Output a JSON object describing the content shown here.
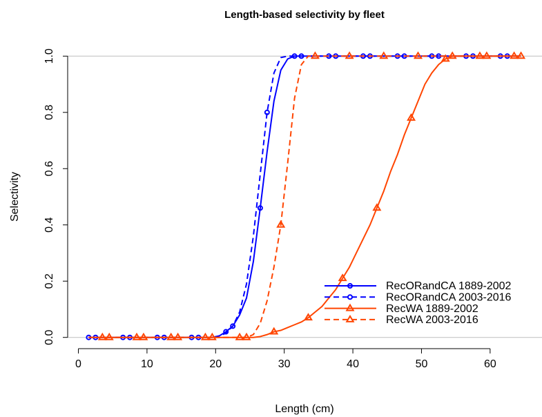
{
  "chart_data": {
    "type": "line",
    "title": "Length-based selectivity by fleet",
    "x_label": "Length (cm)",
    "y_label": "Selectivity",
    "x": [
      1.5,
      2.5,
      3.5,
      4.5,
      5.5,
      6.5,
      7.5,
      8.5,
      9.5,
      10.5,
      11.5,
      12.5,
      13.5,
      14.5,
      15.5,
      16.5,
      17.5,
      18.5,
      19.5,
      20.5,
      21.5,
      22.5,
      23.5,
      24.5,
      25.5,
      26.5,
      27.5,
      28.5,
      29.5,
      30.5,
      31.5,
      32.5,
      33.5,
      34.5,
      35.5,
      36.5,
      37.5,
      38.5,
      39.5,
      40.5,
      41.5,
      42.5,
      43.5,
      44.5,
      45.5,
      46.5,
      47.5,
      48.5,
      49.5,
      50.5,
      51.5,
      52.5,
      53.5,
      54.5,
      55.5,
      56.5,
      57.5,
      58.5,
      59.5,
      60.5,
      61.5,
      62.5,
      63.5,
      64.5
    ],
    "series": [
      {
        "name": "RecORandCA 1889-2002",
        "color": "#0000ff",
        "dashed": false,
        "marker": "circle",
        "marker_every": 5,
        "marker_start": 0,
        "values": [
          0,
          0,
          0,
          0,
          0,
          0,
          0,
          0,
          0,
          0,
          0,
          0,
          0,
          0,
          0,
          0,
          0,
          0,
          0,
          0.005,
          0.02,
          0.04,
          0.08,
          0.14,
          0.27,
          0.46,
          0.66,
          0.84,
          0.95,
          0.99,
          1,
          1,
          1,
          1,
          1,
          1,
          1,
          1,
          1,
          1,
          1,
          1,
          1,
          1,
          1,
          1,
          1,
          1,
          1,
          1,
          1,
          1,
          1,
          1,
          1,
          1,
          1,
          1,
          1,
          1,
          1,
          1,
          1,
          1
        ]
      },
      {
        "name": "RecORandCA 2003-2016",
        "color": "#0000ff",
        "dashed": true,
        "marker": "circle",
        "marker_every": 5,
        "marker_start": 1,
        "values": [
          0,
          0,
          0,
          0,
          0,
          0,
          0,
          0,
          0,
          0,
          0,
          0,
          0,
          0,
          0,
          0,
          0,
          0,
          0,
          0.005,
          0.015,
          0.04,
          0.09,
          0.19,
          0.36,
          0.58,
          0.8,
          0.94,
          0.995,
          1,
          1,
          1,
          1,
          1,
          1,
          1,
          1,
          1,
          1,
          1,
          1,
          1,
          1,
          1,
          1,
          1,
          1,
          1,
          1,
          1,
          1,
          1,
          1,
          1,
          1,
          1,
          1,
          1,
          1,
          1,
          1,
          1,
          1,
          1
        ]
      },
      {
        "name": "RecWA 1889-2002",
        "color": "#ff4500",
        "dashed": false,
        "marker": "triangle",
        "marker_every": 5,
        "marker_start": 2,
        "values": [
          0,
          0,
          0,
          0,
          0,
          0,
          0,
          0,
          0,
          0,
          0,
          0,
          0,
          0,
          0,
          0,
          0,
          0,
          0,
          0,
          0,
          0,
          0,
          0,
          0,
          0.003,
          0.01,
          0.02,
          0.025,
          0.035,
          0.045,
          0.055,
          0.07,
          0.09,
          0.11,
          0.14,
          0.17,
          0.21,
          0.25,
          0.3,
          0.35,
          0.4,
          0.46,
          0.52,
          0.59,
          0.65,
          0.72,
          0.78,
          0.84,
          0.9,
          0.94,
          0.97,
          0.99,
          1,
          1,
          1,
          1,
          1,
          1,
          1,
          1,
          1,
          1,
          1
        ]
      },
      {
        "name": "RecWA 2003-2016",
        "color": "#ff4500",
        "dashed": true,
        "marker": "triangle",
        "marker_every": 5,
        "marker_start": 3,
        "values": [
          0,
          0,
          0,
          0,
          0,
          0,
          0,
          0,
          0,
          0,
          0,
          0,
          0,
          0,
          0,
          0,
          0,
          0,
          0,
          0,
          0,
          0,
          0,
          0,
          0.01,
          0.05,
          0.13,
          0.25,
          0.4,
          0.62,
          0.85,
          0.97,
          1,
          1,
          1,
          1,
          1,
          1,
          1,
          1,
          1,
          1,
          1,
          1,
          1,
          1,
          1,
          1,
          1,
          1,
          1,
          1,
          1,
          1,
          1,
          1,
          1,
          1,
          1,
          1,
          1,
          1,
          1,
          1
        ]
      }
    ],
    "xlim": [
      -1.56,
      67.56
    ],
    "ylim": [
      -0.04,
      1.04
    ],
    "xticks": [
      0,
      10,
      20,
      30,
      40,
      50,
      60
    ],
    "yticks": [
      {
        "value": 0,
        "label": "0.0"
      },
      0.2,
      0.4,
      0.6,
      0.8,
      {
        "value": 1,
        "label": "1.0"
      }
    ],
    "hlines": [
      0,
      1
    ],
    "legend_position": "bottom-right"
  }
}
